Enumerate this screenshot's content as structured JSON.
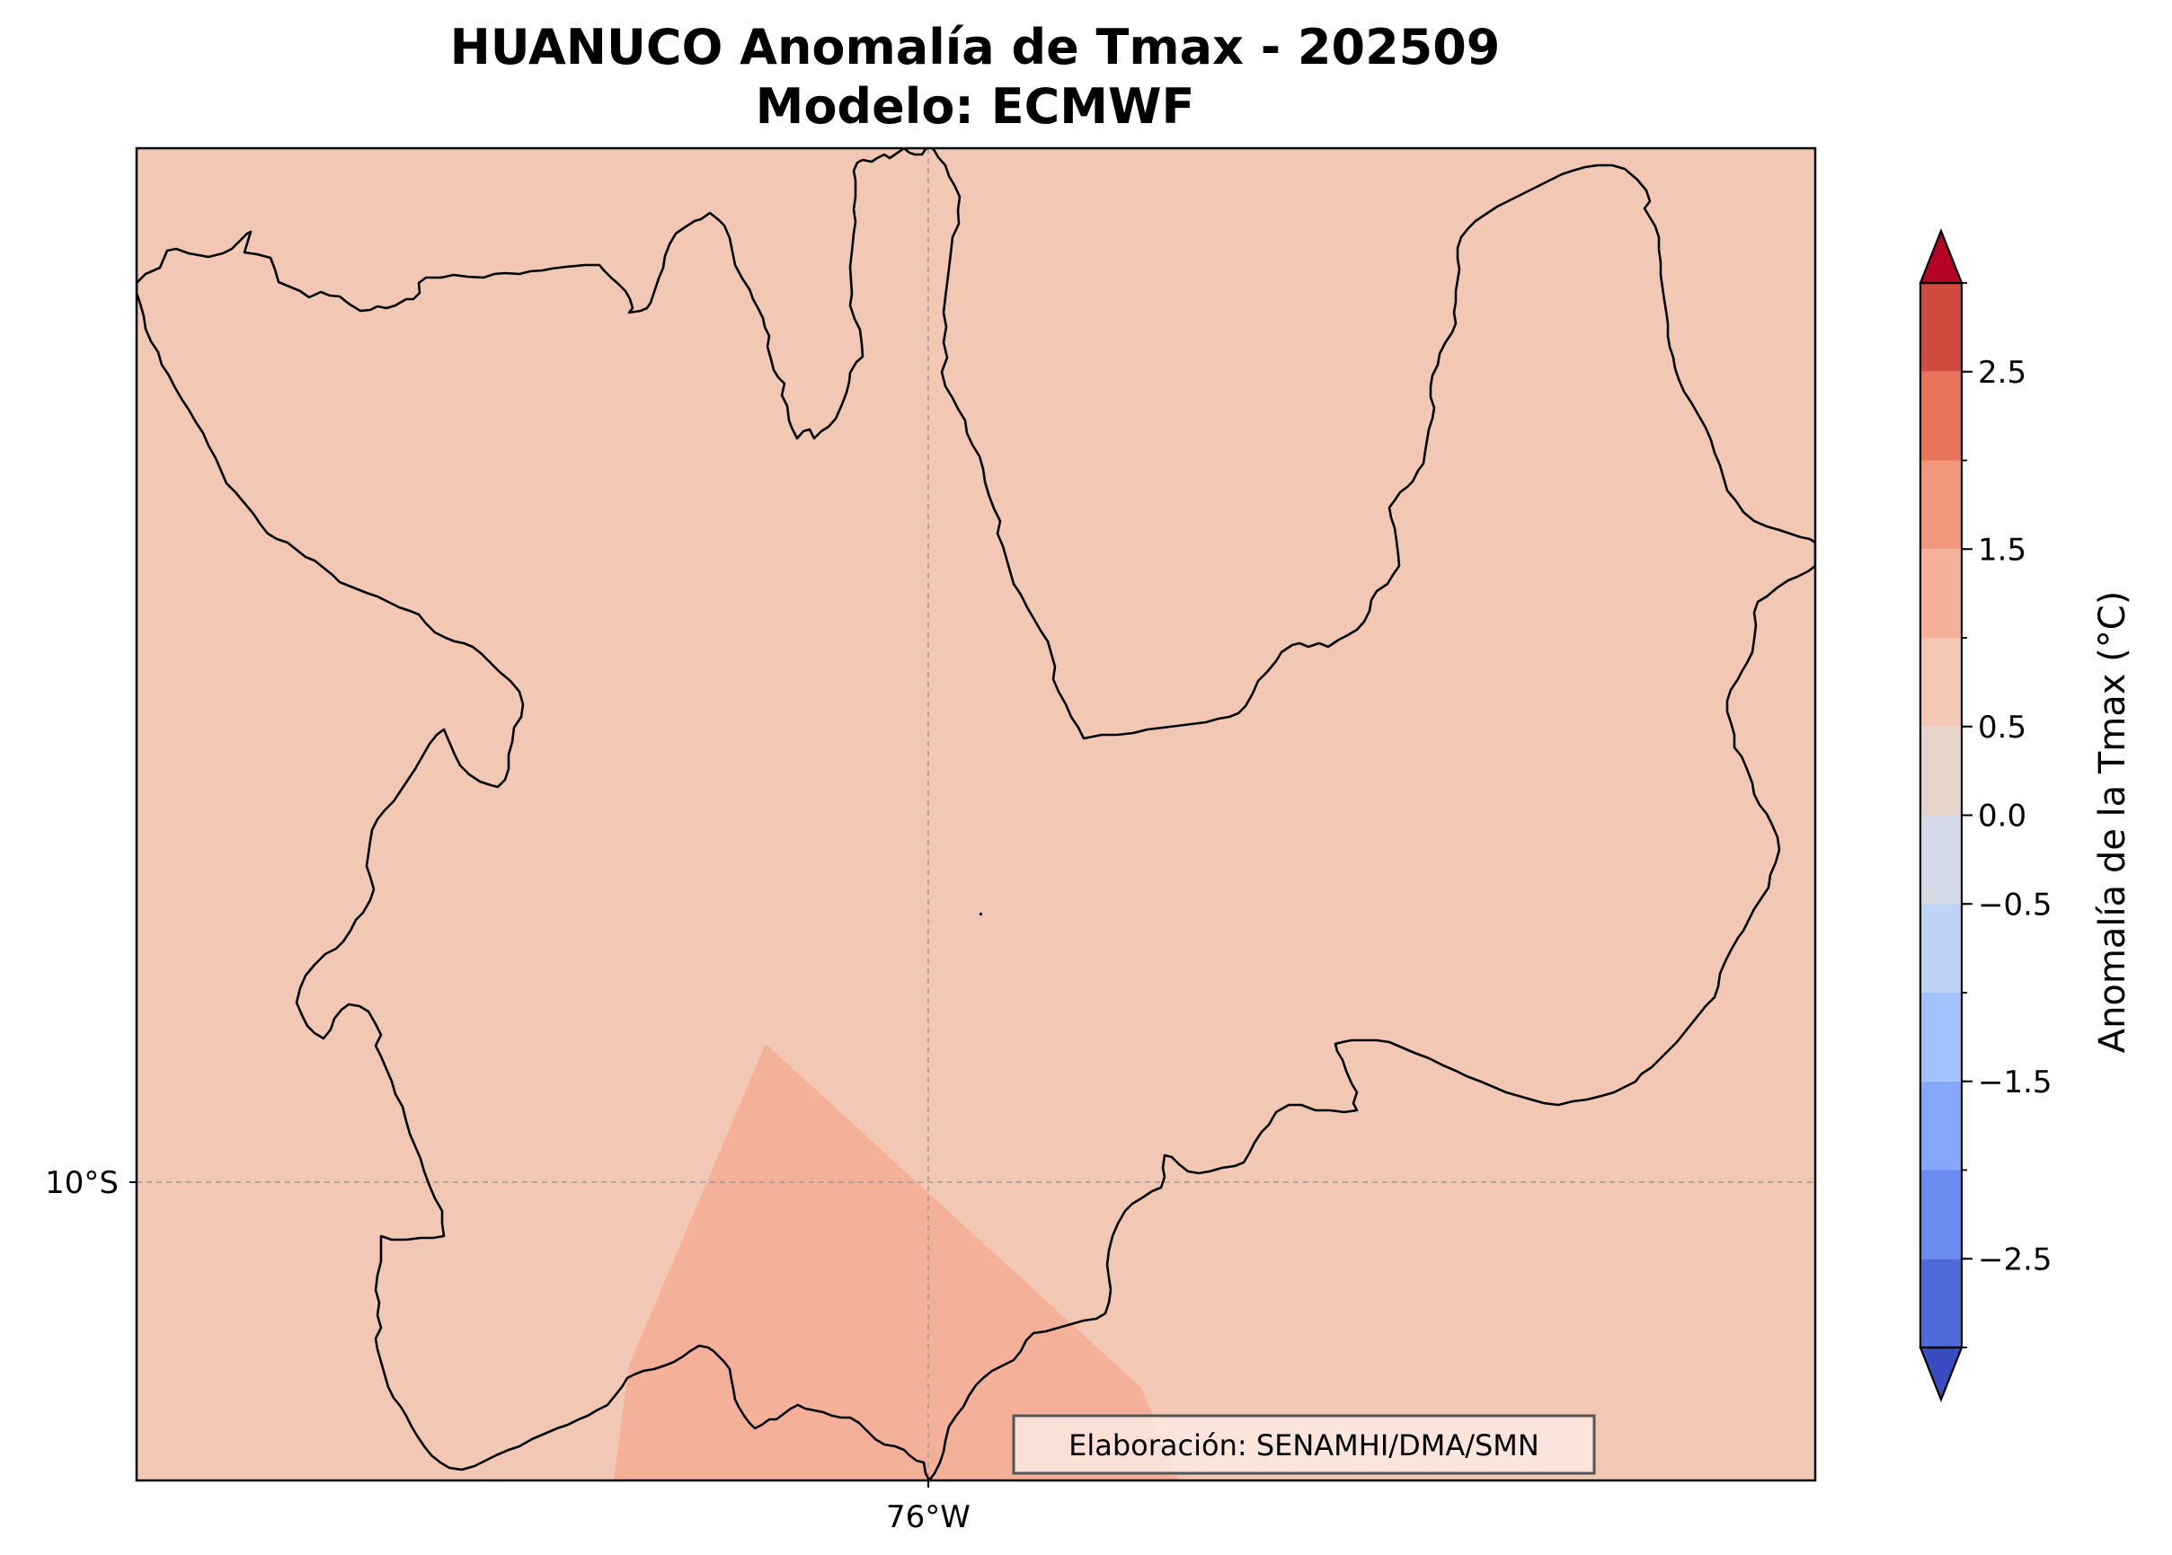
{
  "title": {
    "line1": "HUANUCO Anomalía de Tmax - 202509",
    "line2": "Modelo: ECMWF"
  },
  "map": {
    "region": "HUANUCO",
    "variable": "Tmax",
    "background_fill": "#f2c7b3",
    "warm_patch_fill": "#f5b09a",
    "gridlines": {
      "visible": true,
      "style": "dashed",
      "color": "#a09a96"
    },
    "lon_ticks": [
      "76°W"
    ],
    "lat_ticks": [
      "10°S"
    ],
    "boundary_color": "#000000"
  },
  "colorbar": {
    "label": "Anomalía de la Tmax (°C)",
    "tick_labels": [
      "2.5",
      "1.5",
      "0.5",
      "0.0",
      "−0.5",
      "−1.5",
      "−2.5"
    ],
    "tick_values": [
      2.5,
      1.5,
      0.5,
      0.0,
      -0.5,
      -1.5,
      -2.5
    ],
    "range": [
      -3.0,
      3.0
    ],
    "extend": "both",
    "colors_bottom_to_top": [
      "#3b4cc0",
      "#4f6ad9",
      "#6a8bef",
      "#85a8fc",
      "#a2c1fe",
      "#bfd3f6",
      "#d4dbe6",
      "#e8d6cc",
      "#f2c7b3",
      "#f5b09a",
      "#f1977b",
      "#e7745b",
      "#d24b40",
      "#b40426"
    ]
  },
  "credit": "Elaboración: SENAMHI/DMA/SMN"
}
